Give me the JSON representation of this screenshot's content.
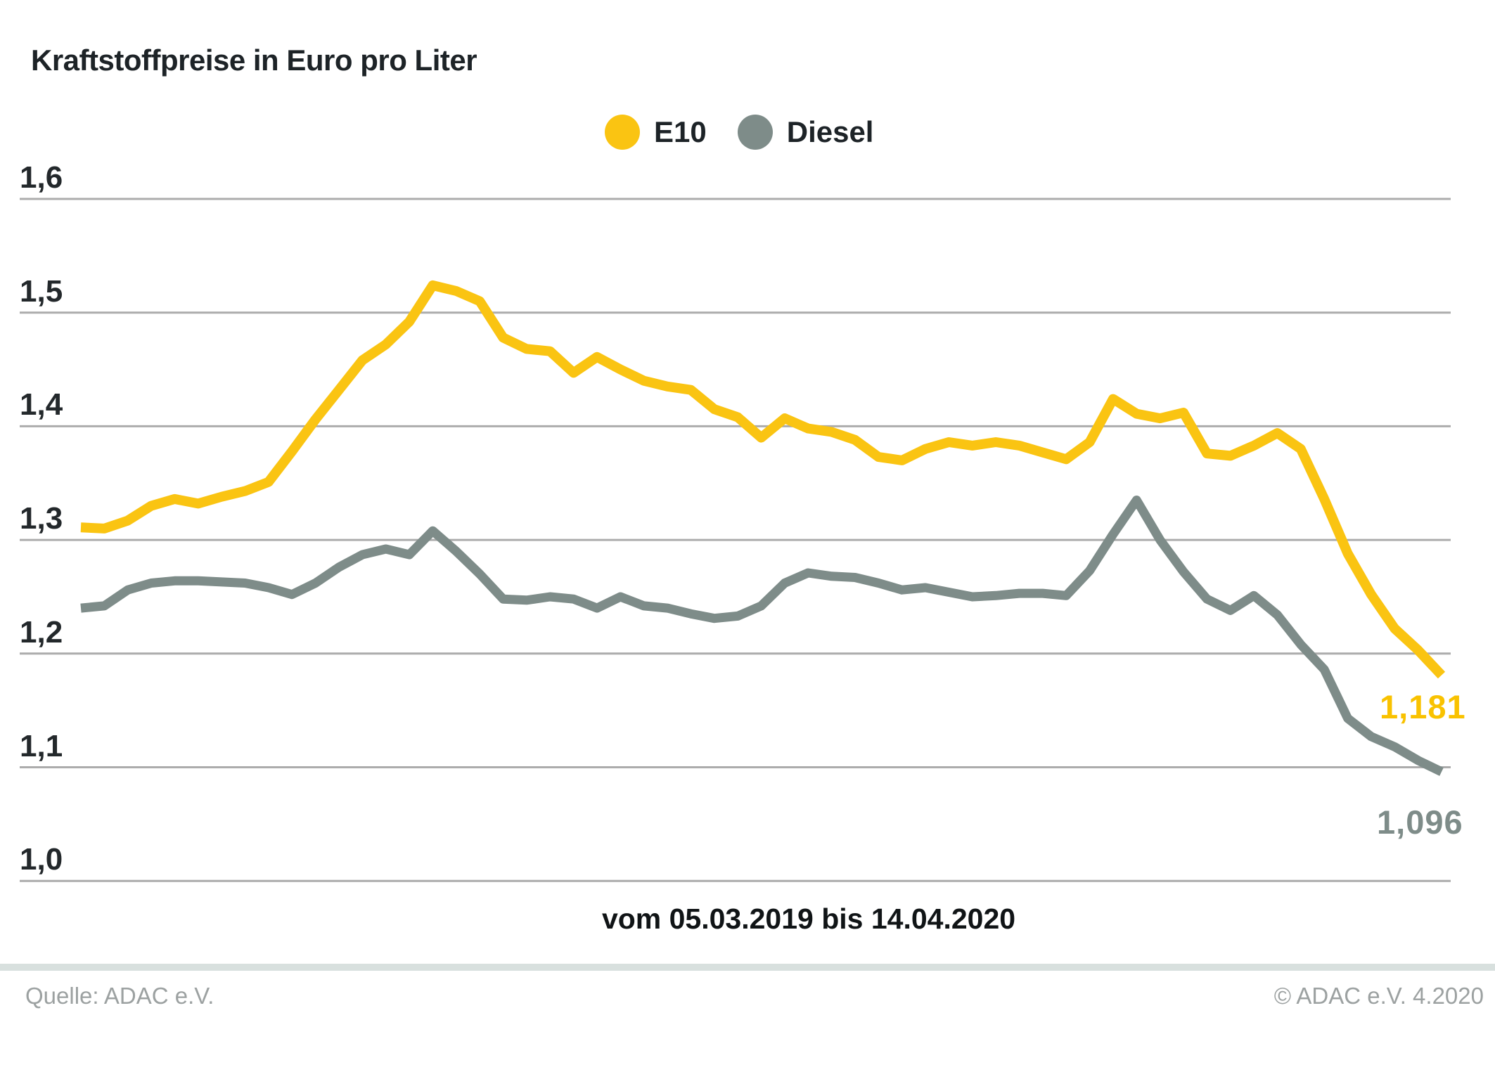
{
  "title": "Kraftstoffpreise in Euro pro Liter",
  "legend": [
    {
      "label": "E10",
      "color": "#fac412",
      "icon": "legend-dot"
    },
    {
      "label": "Diesel",
      "color": "#7e8c89",
      "icon": "legend-dot"
    }
  ],
  "chart_data": {
    "type": "line",
    "title": "Kraftstoffpreise in Euro pro Liter",
    "xlabel": "vom 05.03.2019 bis 14.04.2020",
    "ylabel": "Euro pro Liter",
    "x_start": "05.03.2019",
    "x_end": "14.04.2020",
    "sampling": "weekly",
    "ylim": [
      0.98,
      1.65
    ],
    "grid": "horizontal",
    "legend_position": "top-center",
    "yticks": [
      {
        "label": "1,6",
        "value": 1.6
      },
      {
        "label": "1,5",
        "value": 1.5
      },
      {
        "label": "1,4",
        "value": 1.4
      },
      {
        "label": "1,3",
        "value": 1.3
      },
      {
        "label": "1,2",
        "value": 1.2
      },
      {
        "label": "1,1",
        "value": 1.1
      },
      {
        "label": "1,0",
        "value": 1.0
      }
    ],
    "series": [
      {
        "name": "E10",
        "color": "#fac412",
        "stroke_width": 14,
        "values": [
          1.311,
          1.31,
          1.317,
          1.33,
          1.336,
          1.332,
          1.338,
          1.343,
          1.351,
          1.378,
          1.406,
          1.432,
          1.458,
          1.472,
          1.492,
          1.524,
          1.519,
          1.51,
          1.478,
          1.468,
          1.466,
          1.447,
          1.461,
          1.45,
          1.44,
          1.435,
          1.432,
          1.415,
          1.408,
          1.39,
          1.407,
          1.398,
          1.395,
          1.388,
          1.373,
          1.37,
          1.38,
          1.386,
          1.383,
          1.386,
          1.383,
          1.377,
          1.371,
          1.386,
          1.424,
          1.411,
          1.407,
          1.412,
          1.376,
          1.374,
          1.383,
          1.394,
          1.38,
          1.336,
          1.288,
          1.252,
          1.222,
          1.203,
          1.181
        ]
      },
      {
        "name": "Diesel",
        "color": "#7e8c89",
        "stroke_width": 13,
        "values": [
          1.24,
          1.242,
          1.256,
          1.262,
          1.264,
          1.264,
          1.263,
          1.262,
          1.258,
          1.252,
          1.262,
          1.276,
          1.287,
          1.292,
          1.287,
          1.308,
          1.29,
          1.27,
          1.248,
          1.247,
          1.25,
          1.248,
          1.24,
          1.25,
          1.242,
          1.24,
          1.235,
          1.231,
          1.233,
          1.242,
          1.262,
          1.271,
          1.268,
          1.267,
          1.262,
          1.256,
          1.258,
          1.254,
          1.25,
          1.251,
          1.253,
          1.253,
          1.251,
          1.273,
          1.305,
          1.335,
          1.3,
          1.272,
          1.248,
          1.238,
          1.251,
          1.234,
          1.208,
          1.186,
          1.143,
          1.127,
          1.118,
          1.106,
          1.096
        ]
      }
    ],
    "end_labels": [
      {
        "text": "1,181",
        "color": "#f9c200",
        "series": "E10"
      },
      {
        "text": "1,096",
        "color": "#7e8c89",
        "series": "Diesel"
      }
    ]
  },
  "footer": {
    "source": "Quelle: ADAC e.V.",
    "copyright": "© ADAC e.V. 4.2020"
  },
  "colors": {
    "gridline": "#acacac",
    "divider_band": "#d8e0de",
    "title_text": "#1d2327",
    "footer_text": "#9ca1a1"
  }
}
